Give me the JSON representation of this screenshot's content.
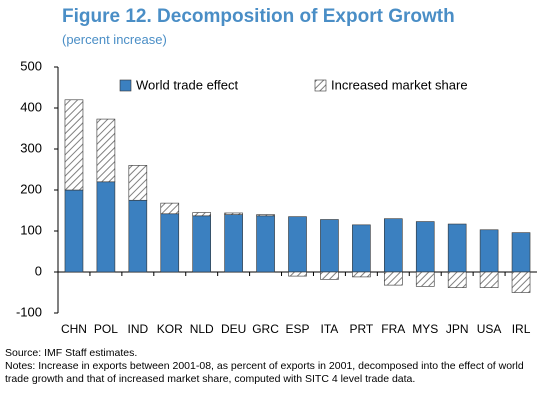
{
  "chart_data": {
    "type": "stacked-bar",
    "title": "Figure 12. Decomposition of Export Growth",
    "subtitle": "(percent increase)",
    "categories": [
      "CHN",
      "POL",
      "IND",
      "KOR",
      "NLD",
      "DEU",
      "GRC",
      "ESP",
      "ITA",
      "PRT",
      "FRA",
      "MYS",
      "JPN",
      "USA",
      "IRL"
    ],
    "series": [
      {
        "name": "World trade effect",
        "color": "#3b80c0",
        "values": [
          200,
          220,
          175,
          142,
          137,
          140,
          137,
          135,
          128,
          115,
          130,
          123,
          117,
          103,
          96
        ]
      },
      {
        "name": "Increased market share",
        "color": "#808080",
        "values": [
          220,
          153,
          85,
          26,
          8,
          4,
          3,
          -10,
          -18,
          -12,
          -32,
          -35,
          -38,
          -38,
          -50
        ]
      }
    ],
    "ylim": [
      -100,
      500
    ],
    "yticks": [
      -100,
      0,
      100,
      200,
      300,
      400,
      500
    ],
    "source": "Source: IMF Staff estimates.",
    "notes": "Notes: Increase in exports between 2001-08, as percent of exports in 2001, decomposed into the effect of world trade growth and that of increased market share, computed with SITC 4 level trade data."
  }
}
